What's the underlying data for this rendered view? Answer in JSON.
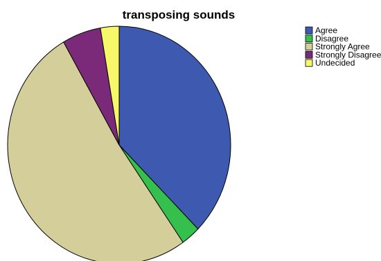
{
  "chart_data": {
    "type": "pie",
    "title": "transposing sounds",
    "legend_position": "top-right",
    "start_angle_deg": 0,
    "direction": "clockwise",
    "slices": [
      {
        "label": "Agree",
        "value": 37.5,
        "color": "#3e59b0"
      },
      {
        "label": "Disagree",
        "value": 2.8,
        "color": "#35bf4d"
      },
      {
        "label": "Strongly Agree",
        "value": 51.4,
        "color": "#d4cf9a"
      },
      {
        "label": "Strongly Disagree",
        "value": 5.6,
        "color": "#7a2a78"
      },
      {
        "label": "Undecided",
        "value": 2.7,
        "color": "#f7f76a"
      }
    ],
    "legend_order": [
      "Agree",
      "Disagree",
      "Strongly Agree",
      "Strongly Disagree",
      "Undecided"
    ]
  }
}
